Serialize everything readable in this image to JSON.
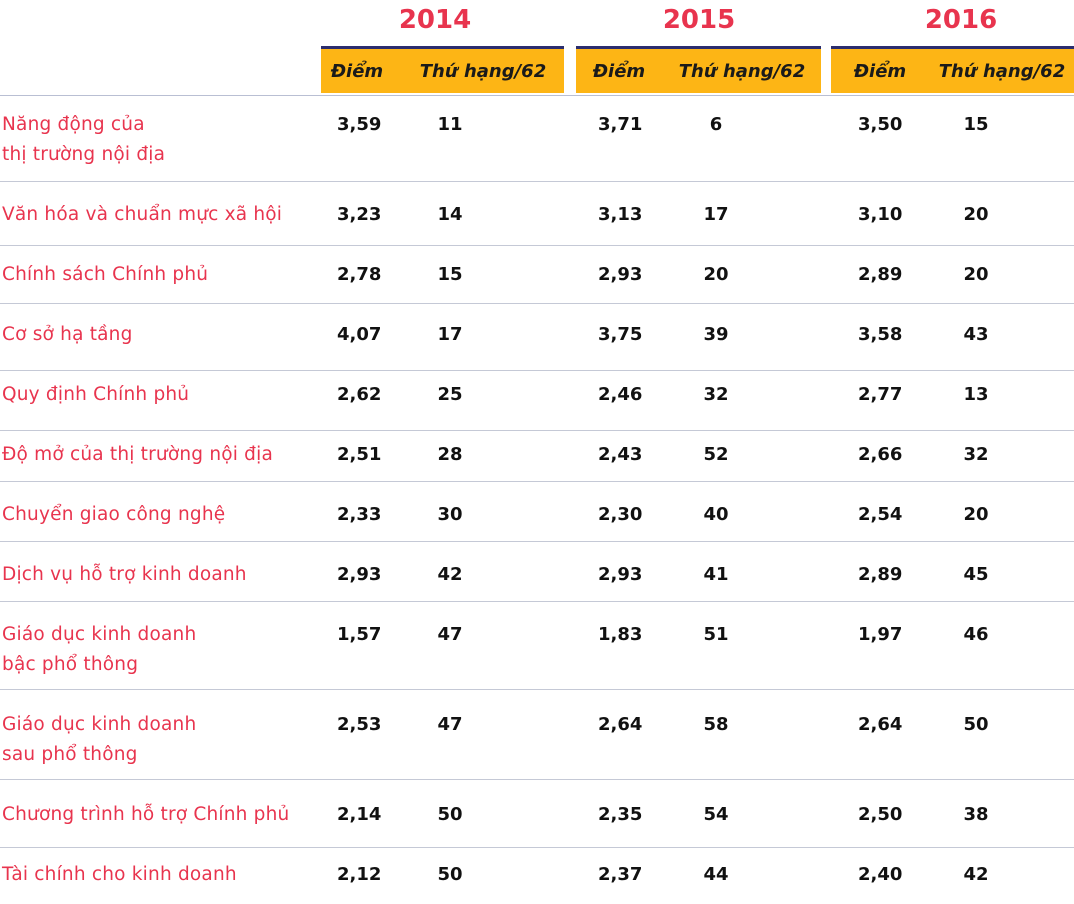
{
  "years": [
    "2014",
    "2015",
    "2016"
  ],
  "header": {
    "score_label": "Điểm",
    "rank_label": "Thứ hạng/62"
  },
  "rows": [
    {
      "label": "Năng động của\nthị trường nội địa",
      "values": [
        "3,59",
        "11",
        "3,71",
        "6",
        "3,50",
        "15"
      ]
    },
    {
      "label": "Văn hóa và chuẩn mực xã hội",
      "values": [
        "3,23",
        "14",
        "3,13",
        "17",
        "3,10",
        "20"
      ]
    },
    {
      "label": "Chính sách Chính phủ",
      "values": [
        "2,78",
        "15",
        "2,93",
        "20",
        "2,89",
        "20"
      ]
    },
    {
      "label": "Cơ sở hạ tầng",
      "values": [
        "4,07",
        "17",
        "3,75",
        "39",
        "3,58",
        "43"
      ]
    },
    {
      "label": "Quy định Chính phủ",
      "values": [
        "2,62",
        "25",
        "2,46",
        "32",
        "2,77",
        "13"
      ]
    },
    {
      "label": "Độ mở của thị trường nội địa",
      "values": [
        "2,51",
        "28",
        "2,43",
        "52",
        "2,66",
        "32"
      ]
    },
    {
      "label": "Chuyển giao công nghệ",
      "values": [
        "2,33",
        "30",
        "2,30",
        "40",
        "2,54",
        "20"
      ]
    },
    {
      "label": "Dịch vụ hỗ trợ kinh doanh",
      "values": [
        "2,93",
        "42",
        "2,93",
        "41",
        "2,89",
        "45"
      ]
    },
    {
      "label": "Giáo dục kinh doanh\nbậc phổ thông",
      "values": [
        "1,57",
        "47",
        "1,83",
        "51",
        "1,97",
        "46"
      ]
    },
    {
      "label": "Giáo dục kinh doanh\nsau phổ thông",
      "values": [
        "2,53",
        "47",
        "2,64",
        "58",
        "2,64",
        "50"
      ]
    },
    {
      "label": "Chương trình hỗ trợ Chính phủ",
      "values": [
        "2,14",
        "50",
        "2,35",
        "54",
        "2,50",
        "38"
      ]
    },
    {
      "label": "Tài chính cho kinh doanh",
      "values": [
        "2,12",
        "50",
        "2,37",
        "44",
        "2,40",
        "42"
      ]
    }
  ],
  "colors": {
    "accent_red": "#e8344e",
    "header_yellow": "#fdb515",
    "year_bar_navy": "#2b2d6e"
  }
}
